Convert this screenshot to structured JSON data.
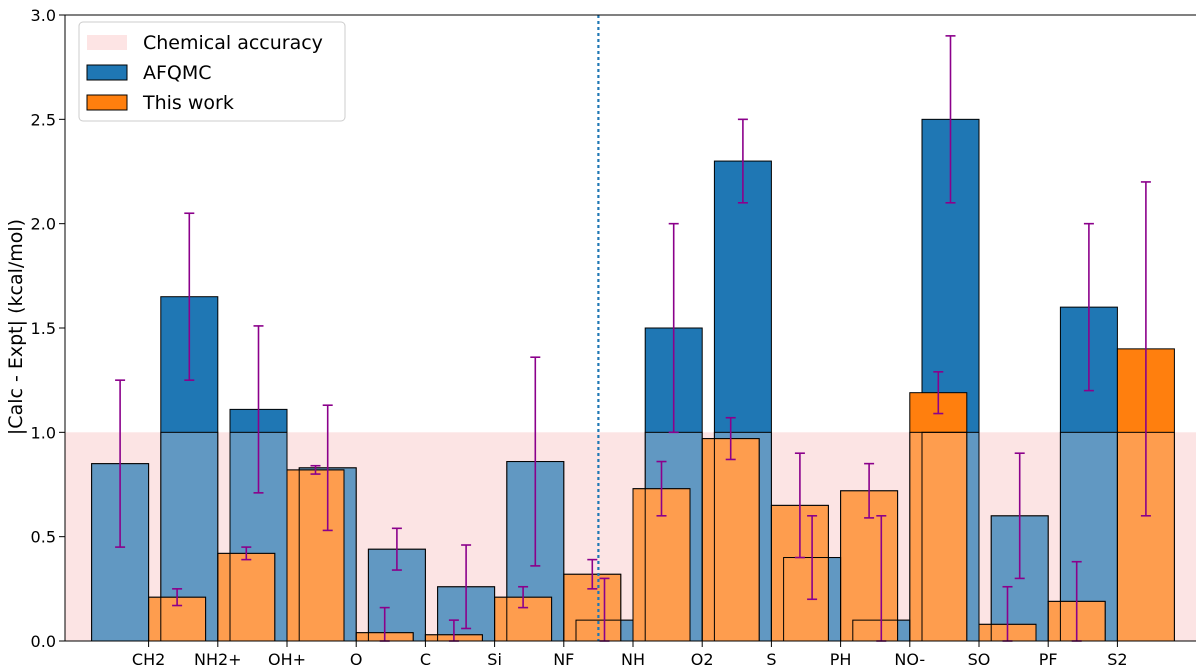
{
  "chart_data": {
    "type": "bar",
    "categories": [
      "CH2",
      "NH2+",
      "OH+",
      "O",
      "C",
      "Si",
      "NF",
      "NH",
      "O2",
      "S",
      "PH",
      "NO-",
      "SO",
      "PF",
      "S2"
    ],
    "series": [
      {
        "name": "AFQMC",
        "color": "#1f77b4",
        "values": [
          0.85,
          1.65,
          1.11,
          0.83,
          0.44,
          0.26,
          0.86,
          0.1,
          1.5,
          2.3,
          0.4,
          0.1,
          2.5,
          0.6,
          1.6
        ],
        "errors": [
          0.4,
          0.4,
          0.4,
          0.3,
          0.1,
          0.2,
          0.5,
          0.2,
          0.5,
          0.2,
          0.2,
          0.5,
          0.4,
          0.3,
          0.4
        ]
      },
      {
        "name": "This work",
        "color": "#ff7f0e",
        "values": [
          0.21,
          0.42,
          0.82,
          0.04,
          0.03,
          0.21,
          0.32,
          0.73,
          0.97,
          0.65,
          0.72,
          1.19,
          0.08,
          0.19,
          1.4
        ],
        "errors": [
          0.04,
          0.03,
          0.02,
          0.12,
          0.07,
          0.05,
          0.07,
          0.13,
          0.1,
          0.25,
          0.13,
          0.1,
          0.18,
          0.19,
          0.8
        ]
      }
    ],
    "accuracy_band": {
      "label": "Chemical accuracy",
      "max": 1.0,
      "color": "#fde4e4"
    },
    "divider_after_category": "NF",
    "error_bar_color": "#8b008b",
    "ylabel": "|Calc - Expt| (kcal/mol)",
    "xlabel": "",
    "ylim": [
      0,
      3.0
    ],
    "yticks": [
      "0.0",
      "0.5",
      "1.0",
      "1.5",
      "2.0",
      "2.5",
      "3.0"
    ],
    "legend_placement": "top-left",
    "grid": false
  }
}
